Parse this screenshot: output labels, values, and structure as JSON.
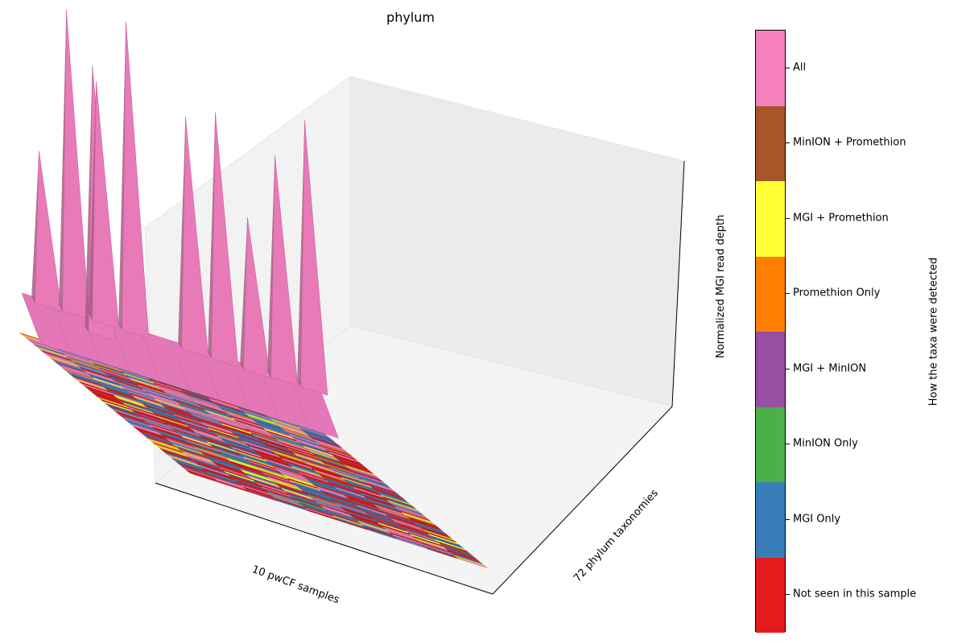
{
  "chart_data": {
    "type": "surface3d-heatmap",
    "title": "phylum",
    "xlabel": "10 pwCF samples",
    "ylabel": "72 phylum taxonomies",
    "zlabel": "Normalized MGI read depth",
    "n_samples": 10,
    "n_taxa": 72,
    "colorbar": {
      "label": "How the taxa were detected",
      "categories": [
        {
          "name": "Not seen in this sample",
          "color": "#e41a1c"
        },
        {
          "name": "MGI Only",
          "color": "#377eb8"
        },
        {
          "name": "MinION Only",
          "color": "#4daf4a"
        },
        {
          "name": "MGI + MinION",
          "color": "#984ea3"
        },
        {
          "name": "Promethion Only",
          "color": "#ff7f00"
        },
        {
          "name": "MGI + Promethion",
          "color": "#ffff33"
        },
        {
          "name": "MinION + Promethion",
          "color": "#a65628"
        },
        {
          "name": "All",
          "color": "#f781bf"
        }
      ]
    },
    "peaks": [
      {
        "sample": 1,
        "taxon": 70,
        "depth": 0.55
      },
      {
        "sample": 2,
        "taxon": 71,
        "depth": 0.98
      },
      {
        "sample": 2,
        "taxon": 60,
        "depth": 0.88
      },
      {
        "sample": 3,
        "taxon": 71,
        "depth": 0.8
      },
      {
        "sample": 4,
        "taxon": 71,
        "depth": 1.0
      },
      {
        "sample": 6,
        "taxon": 71,
        "depth": 0.78
      },
      {
        "sample": 7,
        "taxon": 71,
        "depth": 0.82
      },
      {
        "sample": 8,
        "taxon": 70,
        "depth": 0.55
      },
      {
        "sample": 9,
        "taxon": 71,
        "depth": 0.75
      },
      {
        "sample": 10,
        "taxon": 71,
        "depth": 0.88
      }
    ]
  }
}
